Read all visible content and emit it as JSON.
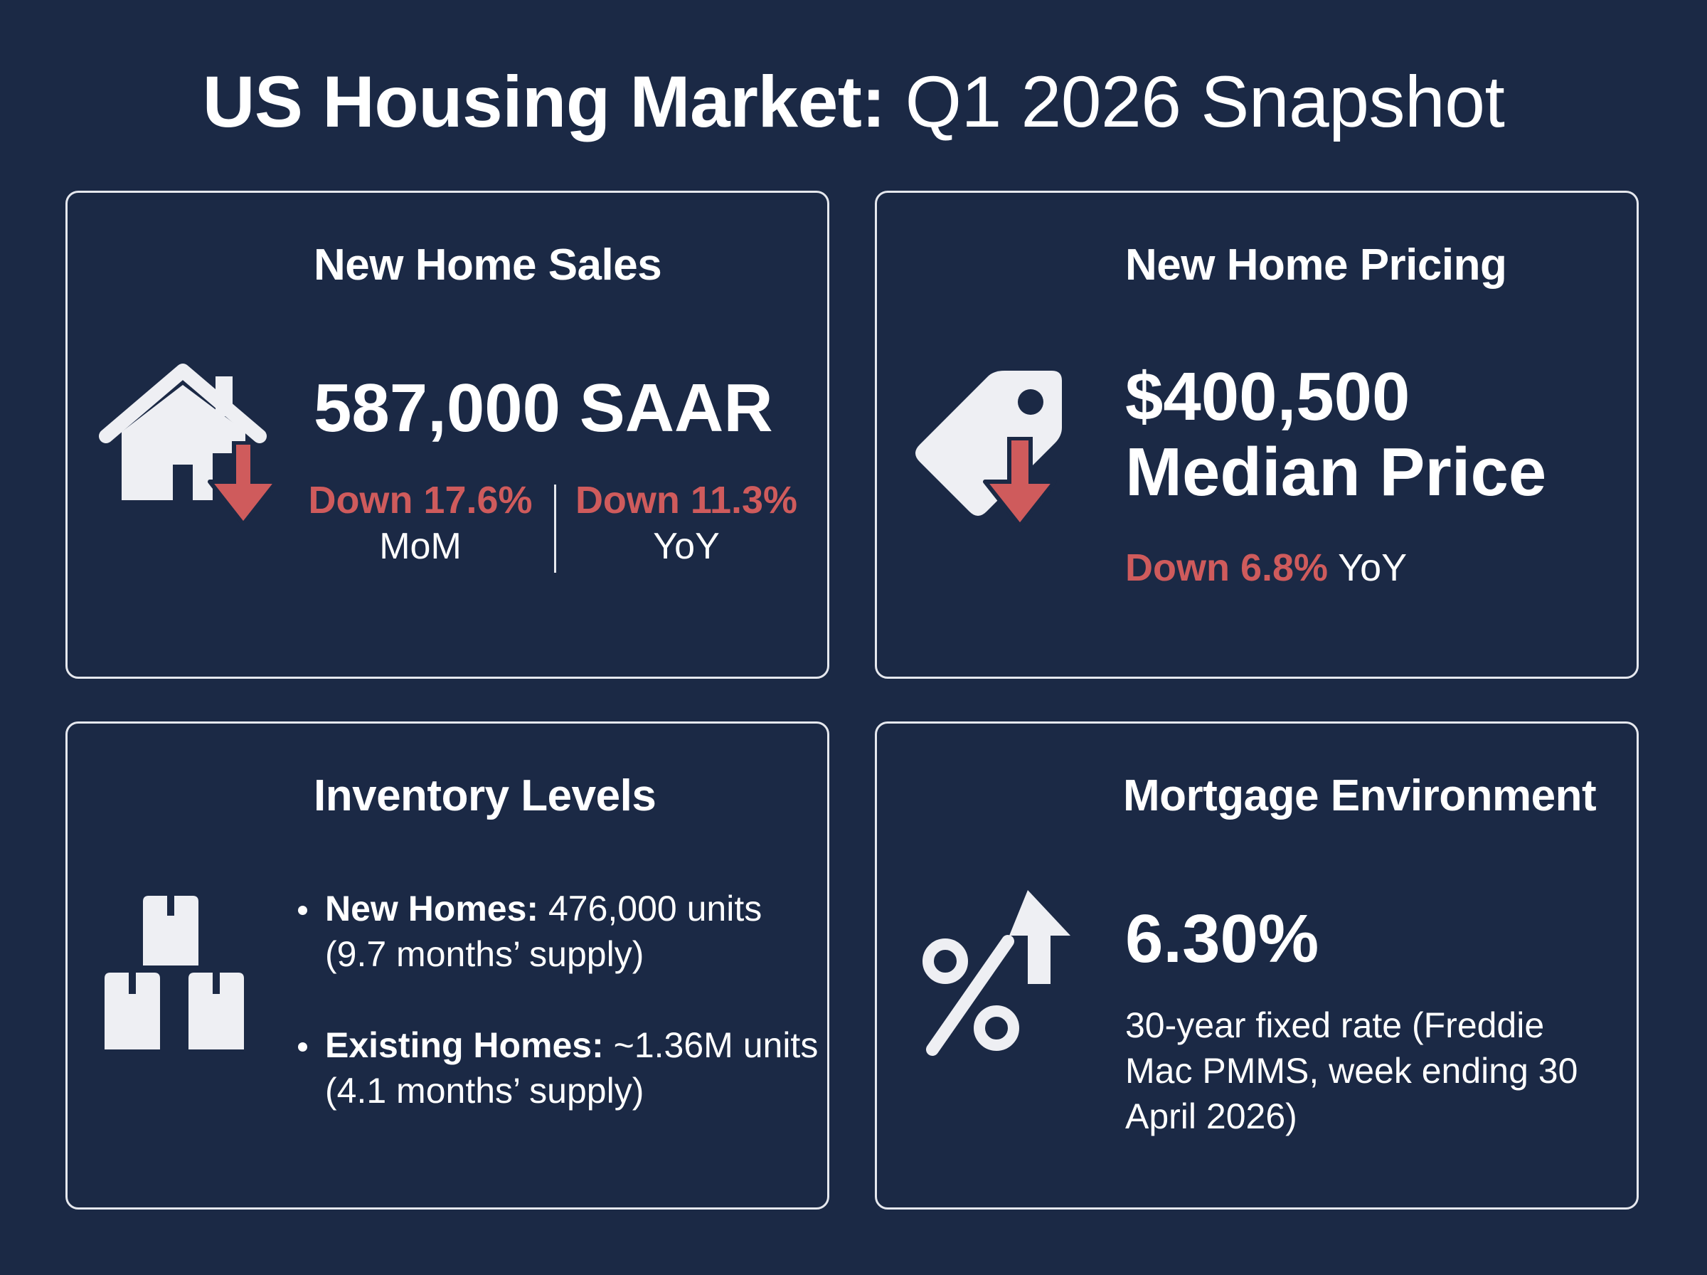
{
  "title": {
    "bold": "US Housing Market:",
    "light": "Q1 2026 Snapshot"
  },
  "cards": {
    "sales": {
      "title": "New Home Sales",
      "icon": "house-down-icon",
      "value": "587,000 SAAR",
      "mom_change": "Down 17.6%",
      "mom_label": "MoM",
      "yoy_change": "Down 11.3%",
      "yoy_label": "YoY"
    },
    "pricing": {
      "title": "New Home Pricing",
      "icon": "price-tag-down-icon",
      "value_line1": "$400,500",
      "value_line2": "Median Price",
      "yoy_change": "Down 6.8%",
      "yoy_label": "YoY"
    },
    "inventory": {
      "title": "Inventory Levels",
      "icon": "boxes-icon",
      "items": [
        {
          "label": "New Homes:",
          "text": "476,000 units (9.7 months’ supply)"
        },
        {
          "label": "Existing Homes:",
          "text": "~1.36M units (4.1 months’ supply)"
        }
      ]
    },
    "mortgage": {
      "title": "Mortgage Environment",
      "icon": "percent-up-icon",
      "value": "6.30%",
      "description": "30-year fixed rate (Freddie Mac PMMS, week ending 30 April 2026)"
    }
  },
  "colors": {
    "background": "#1b2945",
    "border": "#e6e8ee",
    "down": "#cf5b5c",
    "icon_fill": "#eeeff3"
  }
}
